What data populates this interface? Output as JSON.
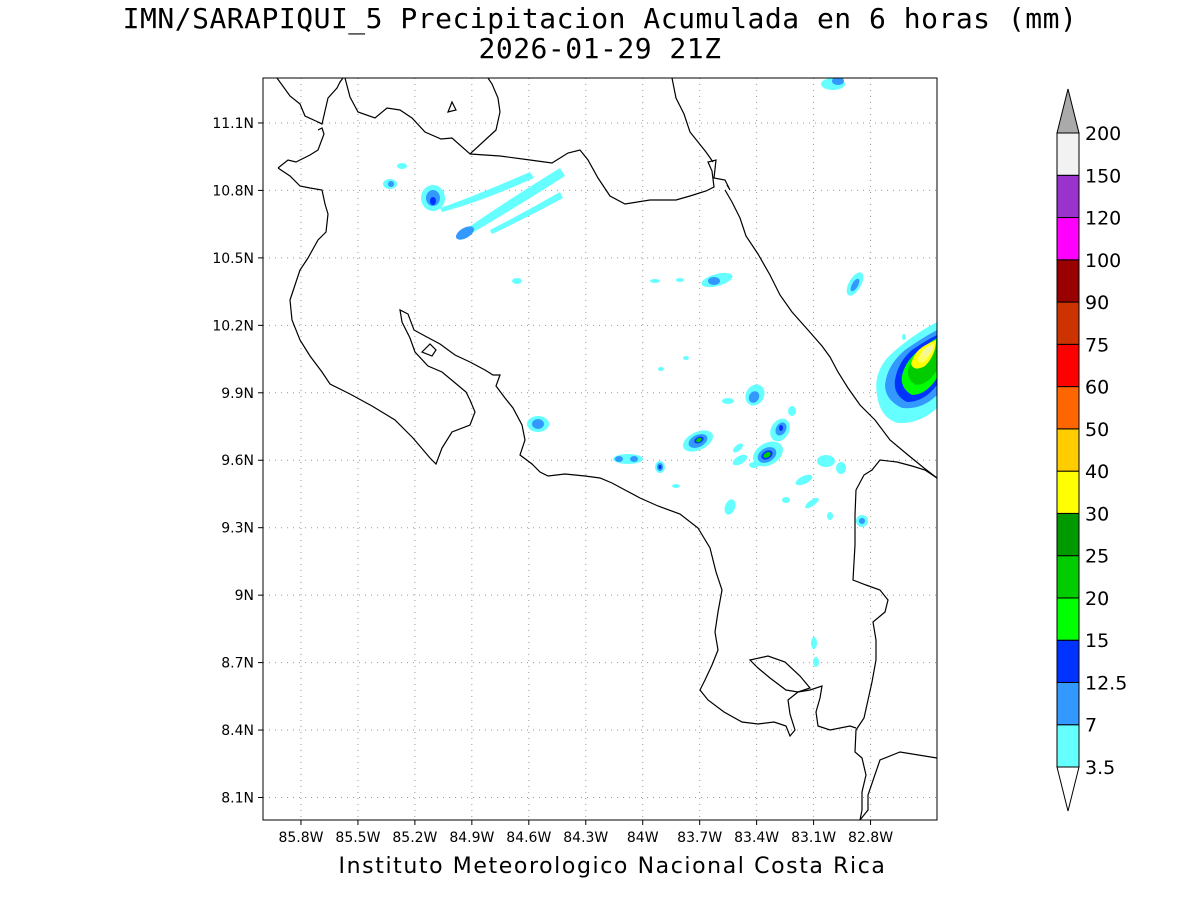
{
  "title": "IMN/SARAPIQUI_5 Precipitacion Acumulada en 6 horas (mm)",
  "subtitle": "2026-01-29 21Z",
  "credit": "Instituto Meteorologico Nacional Costa Rica",
  "map": {
    "lon_range": [
      -86.0,
      -82.45
    ],
    "lat_range": [
      8.0,
      11.3
    ],
    "lat_ticks": [
      {
        "value": 8.1,
        "label": "8.1N"
      },
      {
        "value": 8.4,
        "label": "8.4N"
      },
      {
        "value": 8.7,
        "label": "8.7N"
      },
      {
        "value": 9.0,
        "label": "9N"
      },
      {
        "value": 9.3,
        "label": "9.3N"
      },
      {
        "value": 9.6,
        "label": "9.6N"
      },
      {
        "value": 9.9,
        "label": "9.9N"
      },
      {
        "value": 10.2,
        "label": "10.2N"
      },
      {
        "value": 10.5,
        "label": "10.5N"
      },
      {
        "value": 10.8,
        "label": "10.8N"
      },
      {
        "value": 11.1,
        "label": "11.1N"
      }
    ],
    "lon_ticks": [
      {
        "value": -85.8,
        "label": "85.8W"
      },
      {
        "value": -85.5,
        "label": "85.5W"
      },
      {
        "value": -85.2,
        "label": "85.2W"
      },
      {
        "value": -84.9,
        "label": "84.9W"
      },
      {
        "value": -84.6,
        "label": "84.6W"
      },
      {
        "value": -84.3,
        "label": "84.3W"
      },
      {
        "value": -84.0,
        "label": "84W"
      },
      {
        "value": -83.7,
        "label": "83.7W"
      },
      {
        "value": -83.4,
        "label": "83.4W"
      },
      {
        "value": -83.1,
        "label": "83.1W"
      },
      {
        "value": -82.8,
        "label": "82.8W"
      }
    ],
    "grid": true,
    "grid_style": "dotted"
  },
  "colorbar": {
    "labels": [
      "3.5",
      "7",
      "12.5",
      "15",
      "20",
      "25",
      "30",
      "40",
      "50",
      "60",
      "75",
      "90",
      "100",
      "120",
      "150",
      "200"
    ],
    "colors": [
      "#66ffff",
      "#3399ff",
      "#0033ff",
      "#00ff00",
      "#00cc00",
      "#009900",
      "#ffff00",
      "#ffcc00",
      "#ff6600",
      "#ff0000",
      "#cc3300",
      "#990000",
      "#ff00ff",
      "#9933cc",
      "#f2f2f2",
      "#aaaaaa"
    ],
    "under_color": "#ffffff",
    "over_color": "#aaaaaa"
  }
}
